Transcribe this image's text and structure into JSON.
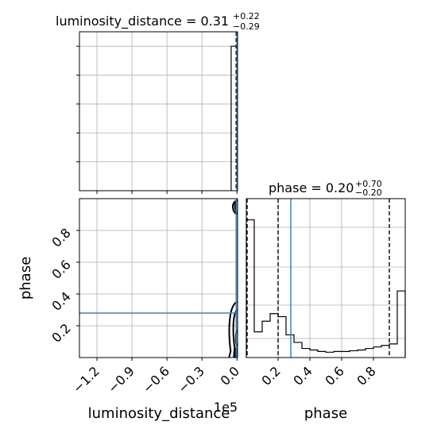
{
  "chart_data": [
    {
      "panel": "top-left",
      "type": "histogram",
      "title_main": "luminosity_distance = 0.31",
      "title_sup": "+0.22",
      "title_sub": "−0.29",
      "xlim": [
        -1.35,
        0.005
      ],
      "bars": [
        {
          "x0": -0.05,
          "x1": 0.0,
          "height": 1.0
        }
      ],
      "ylim": [
        0,
        1.1
      ],
      "quantile_lines_x": [
        0.0,
        0.0
      ],
      "truth_x": 0.0,
      "grid": true
    },
    {
      "panel": "bottom-left",
      "type": "contour",
      "xlabel": "luminosity_distance",
      "ylabel": "phase",
      "offset_text": "1e5",
      "xlim": [
        -1.35,
        0.005
      ],
      "ylim": [
        0,
        1
      ],
      "xticks": [
        -1.2,
        -0.9,
        -0.6,
        -0.3,
        0.0
      ],
      "xtick_labels": [
        "−1.2",
        "−0.9",
        "−0.6",
        "−0.3",
        "0.0"
      ],
      "yticks": [
        0.2,
        0.4,
        0.6,
        0.8
      ],
      "ytick_labels": [
        "0.2",
        "0.4",
        "0.6",
        "0.8"
      ],
      "truth": {
        "x": 0.0,
        "y": 0.28
      },
      "grid": true
    },
    {
      "panel": "bottom-right",
      "type": "histogram",
      "title_main": "phase = 0.20",
      "title_sup": "+0.70",
      "title_sub": "−0.20",
      "xlabel": "phase",
      "xlim": [
        0,
        1
      ],
      "ylim": [
        0,
        1.05
      ],
      "xticks": [
        0.2,
        0.4,
        0.6,
        0.8
      ],
      "xtick_labels": [
        "0.2",
        "0.4",
        "0.6",
        "0.8"
      ],
      "bin_edges": [
        0,
        0.05,
        0.1,
        0.15,
        0.2,
        0.25,
        0.3,
        0.35,
        0.4,
        0.45,
        0.5,
        0.55,
        0.6,
        0.65,
        0.7,
        0.75,
        0.8,
        0.85,
        0.9,
        0.95,
        1.0
      ],
      "counts": [
        0.91,
        0.17,
        0.24,
        0.29,
        0.27,
        0.15,
        0.1,
        0.06,
        0.05,
        0.04,
        0.035,
        0.04,
        0.04,
        0.045,
        0.05,
        0.06,
        0.07,
        0.08,
        0.09,
        0.44
      ],
      "quantile_lines_x": [
        0.0,
        0.2,
        0.9
      ],
      "truth_x": 0.28,
      "grid": true
    }
  ],
  "colors": {
    "truth": "#4682b4",
    "hist": "#000000",
    "grid": "#b0b0b0",
    "axes": "#000000"
  }
}
